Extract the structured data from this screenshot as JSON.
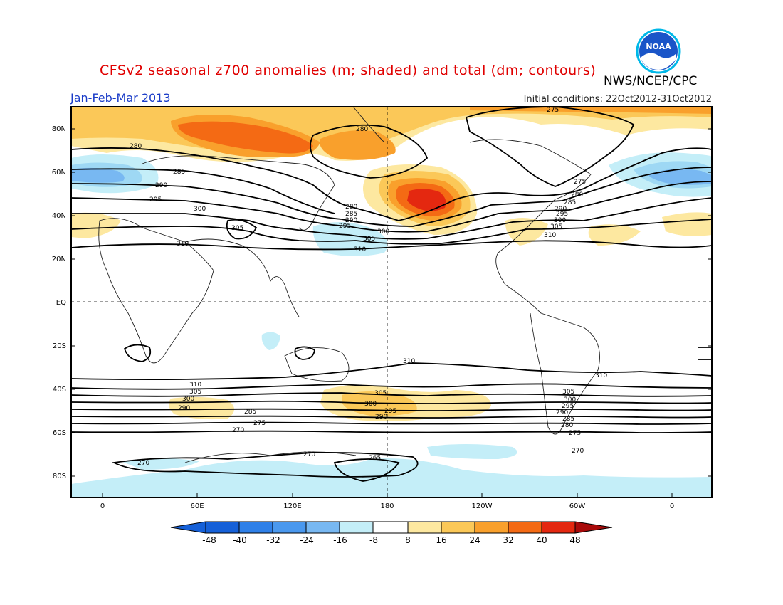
{
  "header": {
    "title": "CFSv2 seasonal z700 anomalies (m; shaded) and total (dm; contours)",
    "agency": "NWS/NCEP/CPC",
    "period": "Jan-Feb-Mar 2013",
    "initial_conditions": "Initial conditions: 22Oct2012-31Oct2012",
    "logo_text": "NOAA"
  },
  "map": {
    "lat_labels": [
      "80N",
      "60N",
      "40N",
      "20N",
      "EQ",
      "20S",
      "40S",
      "60S",
      "80S"
    ],
    "lon_labels": [
      "0",
      "60E",
      "120E",
      "180",
      "120W",
      "60W",
      "0"
    ],
    "contour_labels_north": [
      "275",
      "280",
      "280",
      "285",
      "290",
      "295",
      "300",
      "305",
      "310",
      "280",
      "285",
      "290",
      "295",
      "300",
      "305",
      "310",
      "275",
      "280",
      "285",
      "290",
      "295",
      "300",
      "305",
      "310"
    ],
    "contour_labels_south": [
      "310",
      "310",
      "310",
      "305",
      "300",
      "290",
      "285",
      "275",
      "270",
      "305",
      "300",
      "295",
      "290",
      "305",
      "300",
      "295",
      "290",
      "285",
      "280",
      "275",
      "270",
      "270",
      "270",
      "265"
    ],
    "colors": {
      "neg48": "#1560d8",
      "neg40": "#2f80e8",
      "neg32": "#4a98ee",
      "neg24": "#78b8f2",
      "neg16": "#9ed8f4",
      "neg8": "#c4eef8",
      "pos8": "#fde8a0",
      "pos16": "#fbc858",
      "pos24": "#f9a02c",
      "pos32": "#f46a14",
      "pos40": "#e42810",
      "pos48": "#a80a0a"
    }
  },
  "colorbar": {
    "ticks": [
      "-48",
      "-40",
      "-32",
      "-24",
      "-16",
      "-8",
      "8",
      "16",
      "24",
      "32",
      "40",
      "48"
    ]
  }
}
